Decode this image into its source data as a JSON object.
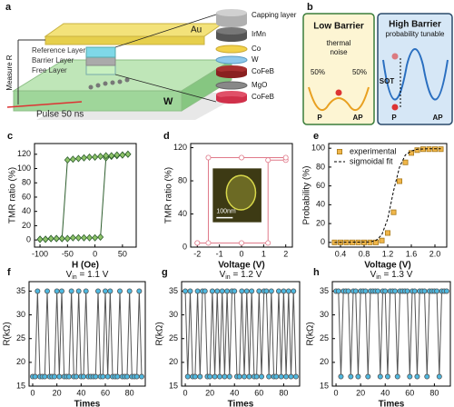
{
  "diagram_a": {
    "label": "a",
    "top_electrode": "Au",
    "layers": [
      "Reference Layer",
      "Barrier Layer",
      "Free Layer"
    ],
    "measure": "Measure R",
    "pulse": "Pulse 50 ns",
    "channel": "W",
    "stack": [
      "Capping layer",
      "IrMn",
      "Co",
      "W",
      "CoFeB",
      "MgO",
      "CoFeB"
    ]
  },
  "diagram_b": {
    "label": "b",
    "low": {
      "title": "Low Barrier",
      "note_lines": [
        "thermal",
        "noise"
      ],
      "left_pct": "50%",
      "right_pct": "50%",
      "left_state": "P",
      "right_state": "AP"
    },
    "high": {
      "title": "High Barrier",
      "note": "probability tunable",
      "drive": "SOT",
      "left_state": "P",
      "right_state": "AP"
    }
  },
  "chart_data": [
    {
      "panel_label": "c",
      "type": "line",
      "x_label": "H (Oe)",
      "y_label": "TMR ratio (%)",
      "x": [
        -100,
        -90,
        -80,
        -70,
        -60,
        -50,
        -40,
        -30,
        -20,
        -10,
        0,
        10,
        20,
        30,
        40,
        50,
        60
      ],
      "xlim": [
        -110,
        75
      ],
      "xticks": [
        -100,
        -50,
        0,
        50
      ],
      "ylim": [
        -10,
        135
      ],
      "yticks": [
        0,
        20,
        40,
        60,
        80,
        100,
        120
      ],
      "series": [
        {
          "color": "#2e5e2e",
          "marker": "diamond",
          "marker_fill": "#8fc46a",
          "values": [
            1,
            1,
            2,
            2,
            2,
            2,
            3,
            3,
            3,
            3,
            3,
            4,
            115,
            117,
            118,
            119,
            120
          ]
        },
        {
          "color": "#2e5e2e",
          "marker": "diamond",
          "marker_fill": "#8fc46a",
          "values": [
            1,
            1,
            2,
            2,
            2,
            112,
            113,
            114,
            115,
            116,
            116,
            117,
            118,
            118,
            119,
            119,
            120
          ]
        }
      ]
    },
    {
      "panel_label": "d",
      "type": "line",
      "x_label": "Voltage (V)",
      "y_label": "TMR ratio (%)",
      "inset_scale": "100nm",
      "xlim": [
        -2.3,
        2.3
      ],
      "xticks": [
        -2,
        -1,
        0,
        1,
        2
      ],
      "ylim": [
        0,
        125
      ],
      "yticks": [
        0,
        40,
        80,
        120
      ],
      "series": [
        {
          "color": "#e07a8a",
          "marker": "circle",
          "marker_fill": "#ffffff",
          "x": [
            -2,
            0,
            1.2,
            1.2,
            2
          ],
          "values": [
            5,
            5,
            5,
            105,
            105
          ]
        },
        {
          "color": "#e07a8a",
          "marker": "circle",
          "marker_fill": "#ffffff",
          "x": [
            2,
            0,
            -1.5,
            -1.5,
            -2
          ],
          "values": [
            108,
            108,
            108,
            5,
            5
          ]
        }
      ]
    },
    {
      "panel_label": "e",
      "type": "line",
      "x_label": "Voltage (V)",
      "y_label": "Probability (%)",
      "legend": "upper left",
      "xlim": [
        0.2,
        2.2
      ],
      "xticks": [
        0.4,
        0.8,
        1.2,
        1.6,
        {
          "value": 2,
          "label": "2.0"
        }
      ],
      "ylim": [
        -5,
        105
      ],
      "yticks": [
        0,
        20,
        40,
        60,
        80,
        100
      ],
      "series": [
        {
          "name": "experimental",
          "type": "scatter",
          "color": "#a87a1c",
          "marker": "square",
          "marker_fill": "#f0b64a",
          "x": [
            0.3,
            0.4,
            0.5,
            0.6,
            0.7,
            0.8,
            0.9,
            1.0,
            1.1,
            1.2,
            1.3,
            1.4,
            1.5,
            1.6,
            1.7,
            1.8,
            1.9,
            2.0,
            2.1
          ],
          "values": [
            0,
            0,
            0,
            0,
            0,
            0,
            0,
            0,
            2,
            10,
            32,
            65,
            85,
            95,
            98,
            99,
            99,
            99,
            99
          ]
        },
        {
          "name": "sigmoidal fit",
          "type": "line",
          "color": "#000000",
          "line_style": "dashed",
          "x": [
            0.3,
            0.9,
            1.0,
            1.1,
            1.2,
            1.3,
            1.4,
            1.5,
            1.6,
            1.7,
            1.9,
            2.1
          ],
          "values": [
            0,
            0.5,
            2,
            8,
            25,
            55,
            80,
            93,
            97,
            99,
            99.5,
            99.5
          ]
        }
      ]
    },
    {
      "panel_label": "f",
      "type": "line",
      "x_label": "Times",
      "y_label": "R(kΩ)",
      "annotation": {
        "text": "V",
        "sub": "in",
        "suffix": " = 1.1 V"
      },
      "x": [
        0,
        2,
        4,
        6,
        8,
        10,
        12,
        14,
        16,
        18,
        20,
        22,
        24,
        26,
        28,
        30,
        32,
        34,
        36,
        38,
        40,
        42,
        44,
        46,
        48,
        50,
        52,
        54,
        56,
        58,
        60,
        62,
        64,
        66,
        68,
        70,
        72,
        74,
        76,
        78,
        80,
        82,
        84,
        86,
        88,
        90
      ],
      "xlim": [
        -3,
        93
      ],
      "xticks": [
        0,
        20,
        40,
        60,
        80
      ],
      "ylim": [
        15,
        37
      ],
      "yticks": [
        15,
        20,
        25,
        30,
        35
      ],
      "series": [
        {
          "color": "#555555",
          "marker": "circle",
          "marker_fill": "#4db8e0",
          "values": [
            17,
            17,
            35,
            17,
            17,
            17,
            35,
            17,
            17,
            17,
            35,
            17,
            35,
            17,
            17,
            17,
            35,
            17,
            17,
            35,
            17,
            17,
            35,
            17,
            17,
            17,
            17,
            35,
            17,
            17,
            35,
            17,
            35,
            17,
            17,
            17,
            35,
            17,
            17,
            17,
            35,
            17,
            17,
            17,
            35,
            17
          ]
        }
      ]
    },
    {
      "panel_label": "g",
      "type": "line",
      "x_label": "Times",
      "y_label": "R(kΩ)",
      "annotation": {
        "text": "V",
        "sub": "in",
        "suffix": " = 1.2 V"
      },
      "x": [
        0,
        2,
        4,
        6,
        8,
        10,
        12,
        14,
        16,
        18,
        20,
        22,
        24,
        26,
        28,
        30,
        32,
        34,
        36,
        38,
        40,
        42,
        44,
        46,
        48,
        50,
        52,
        54,
        56,
        58,
        60,
        62,
        64,
        66,
        68,
        70,
        72,
        74,
        76,
        78,
        80,
        82,
        84,
        86,
        88,
        90
      ],
      "xlim": [
        -3,
        93
      ],
      "xticks": [
        0,
        20,
        40,
        60,
        80
      ],
      "ylim": [
        15,
        37
      ],
      "yticks": [
        15,
        20,
        25,
        30,
        35
      ],
      "series": [
        {
          "color": "#555555",
          "marker": "circle",
          "marker_fill": "#4db8e0",
          "values": [
            35,
            17,
            35,
            17,
            17,
            35,
            17,
            35,
            35,
            17,
            17,
            35,
            17,
            35,
            17,
            35,
            17,
            35,
            17,
            35,
            35,
            17,
            17,
            35,
            17,
            35,
            17,
            35,
            17,
            17,
            35,
            17,
            35,
            35,
            17,
            35,
            17,
            17,
            35,
            17,
            35,
            17,
            35,
            17,
            35,
            17
          ]
        }
      ]
    },
    {
      "panel_label": "h",
      "type": "line",
      "x_label": "Times",
      "y_label": "R(kΩ)",
      "annotation": {
        "text": "V",
        "sub": "in",
        "suffix": " = 1.3 V"
      },
      "x": [
        0,
        2,
        4,
        6,
        8,
        10,
        12,
        14,
        16,
        18,
        20,
        22,
        24,
        26,
        28,
        30,
        32,
        34,
        36,
        38,
        40,
        42,
        44,
        46,
        48,
        50,
        52,
        54,
        56,
        58,
        60,
        62,
        64,
        66,
        68,
        70,
        72,
        74,
        76,
        78,
        80,
        82,
        84,
        86,
        88,
        90
      ],
      "xlim": [
        -3,
        93
      ],
      "xticks": [
        0,
        20,
        40,
        60,
        80
      ],
      "ylim": [
        15,
        37
      ],
      "yticks": [
        15,
        20,
        25,
        30,
        35
      ],
      "series": [
        {
          "color": "#555555",
          "marker": "circle",
          "marker_fill": "#4db8e0",
          "values": [
            35,
            35,
            17,
            35,
            35,
            35,
            17,
            35,
            35,
            17,
            35,
            35,
            35,
            17,
            35,
            35,
            35,
            35,
            17,
            35,
            35,
            17,
            35,
            35,
            35,
            17,
            35,
            35,
            35,
            35,
            17,
            35,
            35,
            17,
            35,
            35,
            35,
            17,
            35,
            35,
            35,
            35,
            17,
            35,
            35,
            35
          ]
        }
      ]
    }
  ]
}
